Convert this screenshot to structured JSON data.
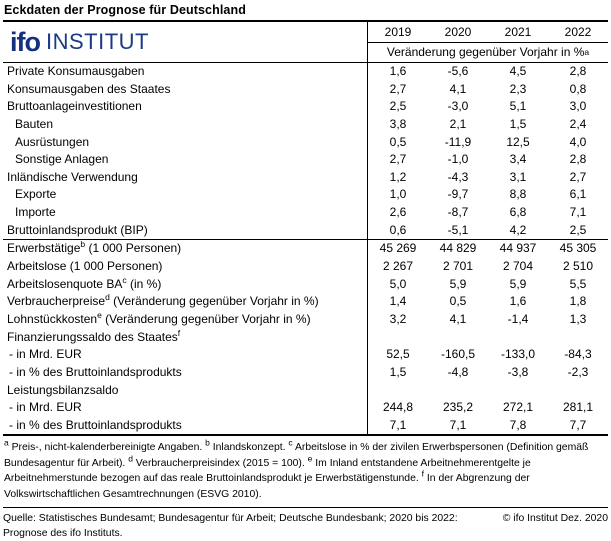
{
  "title": "Eckdaten der Prognose für Deutschland",
  "logo": {
    "mark": "ifo",
    "text": "INSTITUT"
  },
  "colors": {
    "logo_blue": "#14317f",
    "rule_black": "#000000"
  },
  "table": {
    "years": [
      "2019",
      "2020",
      "2021",
      "2022"
    ],
    "unit_header": "Veränderung gegenüber Vorjahr in %",
    "unit_sup": "a",
    "rows": [
      {
        "label": "Private Konsumausgaben",
        "sup": "",
        "label2": "",
        "values": [
          "1,6",
          "-5,6",
          "4,5",
          "2,8"
        ]
      },
      {
        "label": "Konsumausgaben des Staates",
        "sup": "",
        "label2": "",
        "values": [
          "2,7",
          "4,1",
          "2,3",
          "0,8"
        ]
      },
      {
        "label": "Bruttoanlageinvestitionen",
        "sup": "",
        "label2": "",
        "values": [
          "2,5",
          "-3,0",
          "5,1",
          "3,0"
        ]
      },
      {
        "label": "Bauten",
        "sup": "",
        "label2": "",
        "values": [
          "3,8",
          "2,1",
          "1,5",
          "2,4"
        ]
      },
      {
        "label": "Ausrüstungen",
        "sup": "",
        "label2": "",
        "values": [
          "0,5",
          "-11,9",
          "12,5",
          "4,0"
        ]
      },
      {
        "label": "Sonstige Anlagen",
        "sup": "",
        "label2": "",
        "values": [
          "2,7",
          "-1,0",
          "3,4",
          "2,8"
        ]
      },
      {
        "label": "Inländische Verwendung",
        "sup": "",
        "label2": "",
        "values": [
          "1,2",
          "-4,3",
          "3,1",
          "2,7"
        ]
      },
      {
        "label": "Exporte",
        "sup": "",
        "label2": "",
        "values": [
          "1,0",
          "-9,7",
          "8,8",
          "6,1"
        ]
      },
      {
        "label": "Importe",
        "sup": "",
        "label2": "",
        "values": [
          "2,6",
          "-8,7",
          "6,8",
          "7,1"
        ]
      },
      {
        "label": "Bruttoinlandsprodukt (BIP)",
        "sup": "",
        "label2": "",
        "values": [
          "0,6",
          "-5,1",
          "4,2",
          "2,5"
        ]
      },
      {
        "label": "Erwerbstätige",
        "sup": "b",
        "label2": " (1 000 Personen)",
        "values": [
          "45 269",
          "44 829",
          "44 937",
          "45 305"
        ]
      },
      {
        "label": "Arbeitslose (1 000 Personen)",
        "sup": "",
        "label2": "",
        "values": [
          "2 267",
          "2 701",
          "2 704",
          "2 510"
        ]
      },
      {
        "label": "Arbeitslosenquote BA",
        "sup": "c",
        "label2": " (in %)",
        "values": [
          "5,0",
          "5,9",
          "5,9",
          "5,5"
        ]
      },
      {
        "label": "Verbraucherpreise",
        "sup": "d",
        "label2": " (Veränderung gegenüber Vorjahr in %)",
        "values": [
          "1,4",
          "0,5",
          "1,6",
          "1,8"
        ]
      },
      {
        "label": "Lohnstückkosten",
        "sup": "e",
        "label2": " (Veränderung gegenüber Vorjahr in %)",
        "values": [
          "3,2",
          "4,1",
          "-1,4",
          "1,3"
        ]
      },
      {
        "label": "Finanzierungssaldo des Staates",
        "sup": "f",
        "label2": "",
        "values": [
          "",
          "",
          "",
          ""
        ]
      },
      {
        "label": "- in Mrd. EUR",
        "sup": "",
        "label2": "",
        "values": [
          "52,5",
          "-160,5",
          "-133,0",
          "-84,3"
        ]
      },
      {
        "label": "- in % des Bruttoinlandsprodukts",
        "sup": "",
        "label2": "",
        "values": [
          "1,5",
          "-4,8",
          "-3,8",
          "-2,3"
        ]
      },
      {
        "label": "Leistungsbilanzsaldo",
        "sup": "",
        "label2": "",
        "values": [
          "",
          "",
          "",
          ""
        ]
      },
      {
        "label": "- in Mrd. EUR",
        "sup": "",
        "label2": "",
        "values": [
          "244,8",
          "235,2",
          "272,1",
          "281,1"
        ]
      },
      {
        "label": "- in % des Bruttoinlandsprodukts",
        "sup": "",
        "label2": "",
        "values": [
          "7,1",
          "7,1",
          "7,8",
          "7,7"
        ]
      }
    ]
  },
  "footnotes": [
    {
      "sup": "a",
      "text": " Preis-, nicht-kalenderbereinigte Angaben. "
    },
    {
      "sup": "b",
      "text": " Inlandskonzept. "
    },
    {
      "sup": "c",
      "text": " Arbeitslose in % der zivilen Erwerbspersonen (Definition gemäß Bundesagentur für Arbeit). "
    },
    {
      "sup": "d",
      "text": " Verbraucherpreisindex (2015 = 100). "
    },
    {
      "sup": "e",
      "text": " Im Inland entstandene Arbeitnehmerentgelte je Arbeitnehmerstunde bezogen auf das reale Bruttoinlandsprodukt je Erwerbstätigenstunde. "
    },
    {
      "sup": "f",
      "text": " In der Abgrenzung der Volkswirtschaftlichen Gesamtrechnungen (ESVG 2010)."
    }
  ],
  "source": {
    "text": "Quelle: Statistisches Bundesamt; Bundesagentur für Arbeit; Deutsche Bundesbank; 2020 bis 2022: Prognose des ifo Instituts.",
    "copyright": "© ifo Institut Dez. 2020"
  }
}
